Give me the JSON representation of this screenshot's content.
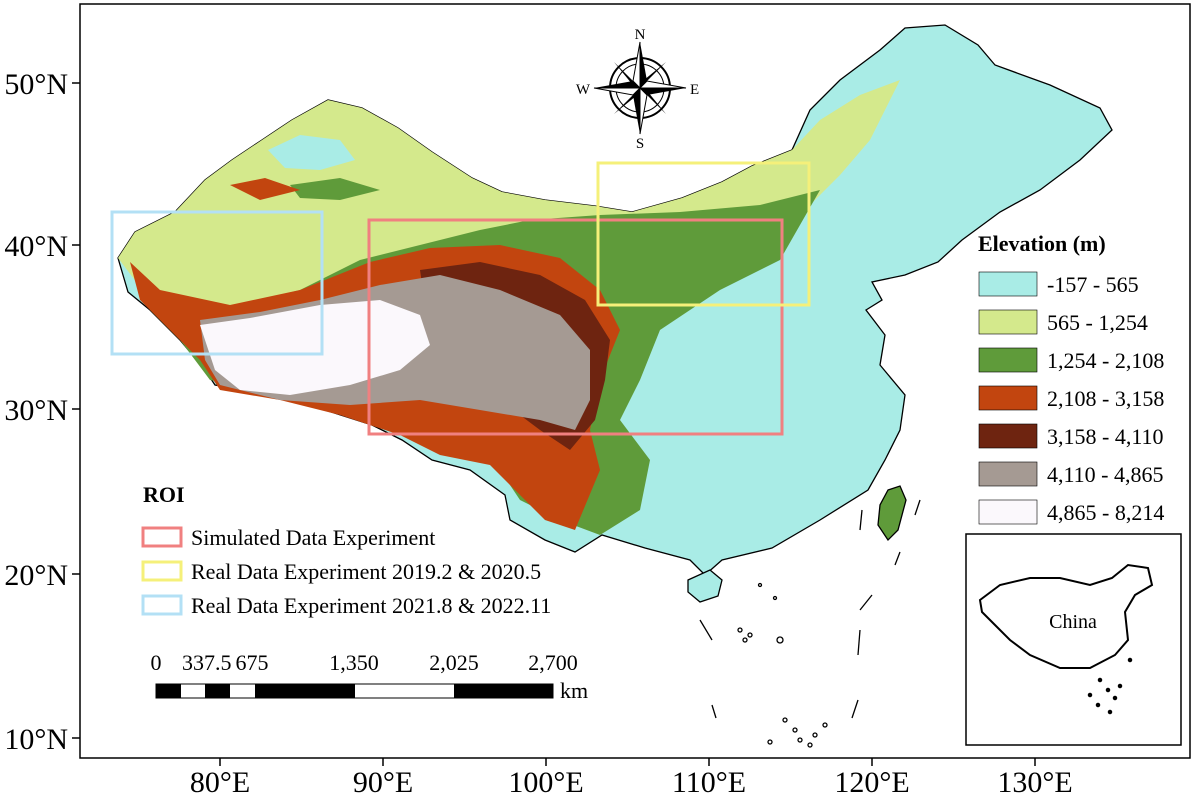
{
  "map": {
    "lat_ticks": [
      "50°N",
      "40°N",
      "30°N",
      "20°N",
      "10°N"
    ],
    "lon_ticks": [
      "80°E",
      "90°E",
      "100°E",
      "110°E",
      "120°E",
      "130°E"
    ]
  },
  "elevation_legend": {
    "title": "Elevation (m)",
    "classes": [
      {
        "label": "-157 - 565",
        "color": "#a9ece6"
      },
      {
        "label": "565 - 1,254",
        "color": "#d4e98c"
      },
      {
        "label": "1,254 - 2,108",
        "color": "#5f9b3a"
      },
      {
        "label": "2,108 - 3,158",
        "color": "#c2450f"
      },
      {
        "label": "3,158 - 4,110",
        "color": "#6e2410"
      },
      {
        "label": "4,110 - 4,865",
        "color": "#a59a93"
      },
      {
        "label": "4,865 - 8,214",
        "color": "#fbf8fc"
      }
    ]
  },
  "roi_legend": {
    "title": "ROI",
    "items": [
      {
        "label": "Simulated Data Experiment",
        "color": "#f08080"
      },
      {
        "label": "Real Data Experiment 2019.2 & 2020.5",
        "color": "#f5f07a"
      },
      {
        "label": "Real Data Experiment 2021.8 & 2022.11",
        "color": "#b3e0f5"
      }
    ]
  },
  "scale_bar": {
    "labels": [
      "0",
      "337.5",
      "675",
      "1,350",
      "2,025",
      "2,700"
    ],
    "unit": "km"
  },
  "compass": {
    "n": "N",
    "s": "S",
    "e": "E",
    "w": "W"
  },
  "inset": {
    "label": "China"
  }
}
